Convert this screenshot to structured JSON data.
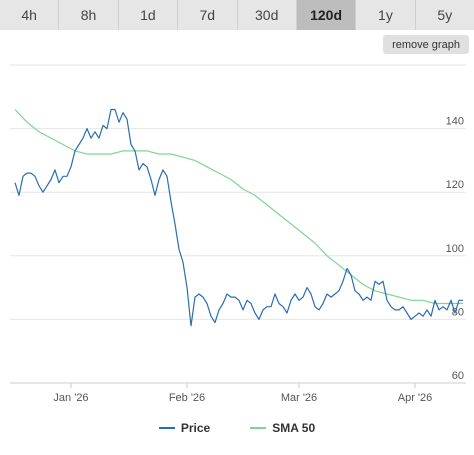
{
  "tabs": [
    {
      "label": "4h",
      "active": false
    },
    {
      "label": "8h",
      "active": false
    },
    {
      "label": "1d",
      "active": false
    },
    {
      "label": "7d",
      "active": false
    },
    {
      "label": "30d",
      "active": false
    },
    {
      "label": "120d",
      "active": true
    },
    {
      "label": "1y",
      "active": false
    },
    {
      "label": "5y",
      "active": false
    }
  ],
  "remove_graph_label": "remove graph",
  "chart_data": {
    "type": "line",
    "y_ticks": [
      140,
      120,
      100,
      80,
      60
    ],
    "x_ticks": [
      "Jan '26",
      "Feb '26",
      "Mar '26",
      "Apr '26"
    ],
    "ylim": [
      60,
      160
    ],
    "grid": true,
    "legend_position": "bottom",
    "series": [
      {
        "name": "Price",
        "color": "#2a6db0",
        "points": [
          [
            0,
            123
          ],
          [
            1,
            119
          ],
          [
            2,
            125
          ],
          [
            3,
            126
          ],
          [
            4,
            126
          ],
          [
            5,
            125
          ],
          [
            6,
            122
          ],
          [
            7,
            120
          ],
          [
            8,
            122
          ],
          [
            9,
            124
          ],
          [
            10,
            127
          ],
          [
            11,
            123
          ],
          [
            12,
            125
          ],
          [
            13,
            125
          ],
          [
            14,
            128
          ],
          [
            15,
            133
          ],
          [
            16,
            135
          ],
          [
            17,
            137
          ],
          [
            18,
            140
          ],
          [
            19,
            137
          ],
          [
            20,
            139
          ],
          [
            21,
            137
          ],
          [
            22,
            141
          ],
          [
            23,
            140
          ],
          [
            24,
            146
          ],
          [
            25,
            146
          ],
          [
            26,
            142
          ],
          [
            27,
            145
          ],
          [
            28,
            143
          ],
          [
            29,
            135
          ],
          [
            30,
            133
          ],
          [
            31,
            127
          ],
          [
            32,
            129
          ],
          [
            33,
            128
          ],
          [
            34,
            124
          ],
          [
            35,
            119
          ],
          [
            36,
            124
          ],
          [
            37,
            127
          ],
          [
            38,
            125
          ],
          [
            39,
            117
          ],
          [
            40,
            110
          ],
          [
            41,
            102
          ],
          [
            42,
            98
          ],
          [
            43,
            90
          ],
          [
            44,
            78
          ],
          [
            45,
            87
          ],
          [
            46,
            88
          ],
          [
            47,
            87
          ],
          [
            48,
            85
          ],
          [
            49,
            81
          ],
          [
            50,
            79
          ],
          [
            51,
            83
          ],
          [
            52,
            85
          ],
          [
            53,
            88
          ],
          [
            54,
            87
          ],
          [
            55,
            87
          ],
          [
            56,
            86
          ],
          [
            57,
            83
          ],
          [
            58,
            86
          ],
          [
            59,
            85
          ],
          [
            60,
            82
          ],
          [
            61,
            80
          ],
          [
            62,
            83
          ],
          [
            63,
            84
          ],
          [
            64,
            84
          ],
          [
            65,
            88
          ],
          [
            66,
            85
          ],
          [
            67,
            84
          ],
          [
            68,
            82
          ],
          [
            69,
            86
          ],
          [
            70,
            88
          ],
          [
            71,
            86
          ],
          [
            72,
            87
          ],
          [
            73,
            90
          ],
          [
            74,
            88
          ],
          [
            75,
            84
          ],
          [
            76,
            83
          ],
          [
            77,
            85
          ],
          [
            78,
            88
          ],
          [
            79,
            87
          ],
          [
            80,
            88
          ],
          [
            81,
            89
          ],
          [
            82,
            92
          ],
          [
            83,
            96
          ],
          [
            84,
            94
          ],
          [
            85,
            89
          ],
          [
            86,
            88
          ],
          [
            87,
            86
          ],
          [
            88,
            87
          ],
          [
            89,
            86
          ],
          [
            90,
            92
          ],
          [
            91,
            91
          ],
          [
            92,
            92
          ],
          [
            93,
            86
          ],
          [
            94,
            84
          ],
          [
            95,
            83
          ],
          [
            96,
            83
          ],
          [
            97,
            84
          ],
          [
            98,
            82
          ],
          [
            99,
            80
          ],
          [
            100,
            81
          ],
          [
            101,
            82
          ],
          [
            102,
            81
          ],
          [
            103,
            83
          ],
          [
            104,
            81
          ],
          [
            105,
            86
          ],
          [
            106,
            83
          ],
          [
            107,
            84
          ],
          [
            108,
            83
          ],
          [
            109,
            86
          ],
          [
            110,
            82
          ],
          [
            111,
            86
          ],
          [
            112,
            86
          ]
        ]
      },
      {
        "name": "SMA 50",
        "color": "#7ed68e",
        "points": [
          [
            0,
            146
          ],
          [
            3,
            142
          ],
          [
            6,
            139
          ],
          [
            9,
            137
          ],
          [
            12,
            135
          ],
          [
            15,
            133
          ],
          [
            18,
            132
          ],
          [
            21,
            132
          ],
          [
            24,
            132
          ],
          [
            27,
            133
          ],
          [
            30,
            133
          ],
          [
            33,
            133
          ],
          [
            36,
            132
          ],
          [
            39,
            132
          ],
          [
            42,
            131
          ],
          [
            45,
            130
          ],
          [
            48,
            128
          ],
          [
            51,
            126
          ],
          [
            54,
            124
          ],
          [
            57,
            121
          ],
          [
            60,
            119
          ],
          [
            63,
            116
          ],
          [
            66,
            113
          ],
          [
            69,
            110
          ],
          [
            72,
            107
          ],
          [
            75,
            104
          ],
          [
            78,
            100
          ],
          [
            81,
            97
          ],
          [
            84,
            94
          ],
          [
            87,
            91
          ],
          [
            90,
            89
          ],
          [
            93,
            88
          ],
          [
            96,
            87
          ],
          [
            99,
            86
          ],
          [
            102,
            86
          ],
          [
            105,
            85
          ],
          [
            108,
            85
          ],
          [
            111,
            85
          ],
          [
            112,
            85
          ]
        ]
      }
    ]
  }
}
